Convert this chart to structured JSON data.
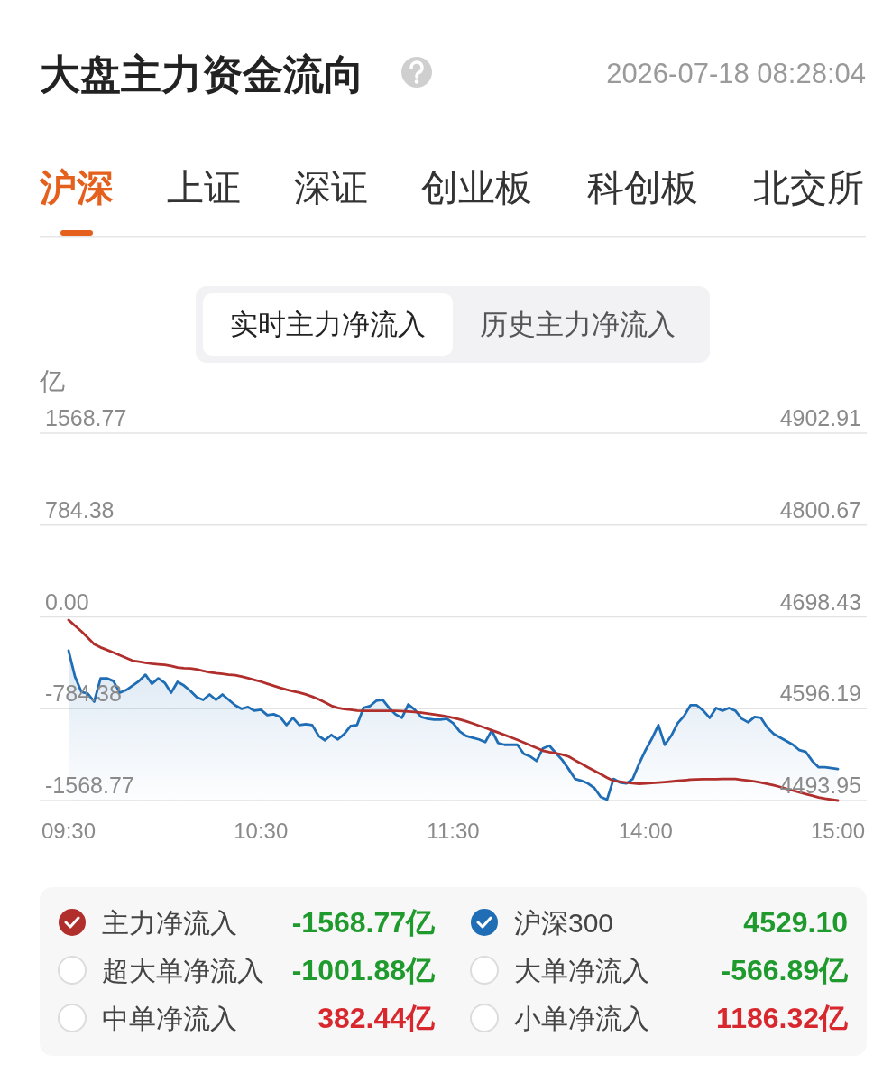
{
  "chart_data": {
    "type": "line",
    "title": "大盘主力资金流向",
    "ylabel": "亿",
    "categories": [
      "09:30",
      null,
      null,
      null,
      null,
      null,
      null,
      null,
      null,
      null,
      null,
      null,
      null,
      null,
      null,
      null,
      null,
      null,
      null,
      null,
      null,
      null,
      null,
      null,
      null,
      null,
      null,
      null,
      null,
      null,
      "10:30",
      null,
      null,
      null,
      null,
      null,
      null,
      null,
      null,
      null,
      null,
      null,
      null,
      null,
      null,
      null,
      null,
      null,
      null,
      null,
      null,
      null,
      null,
      null,
      null,
      null,
      null,
      null,
      null,
      null,
      "11:30",
      null,
      null,
      null,
      null,
      null,
      null,
      null,
      null,
      null,
      null,
      null,
      null,
      null,
      null,
      null,
      null,
      null,
      null,
      null,
      null,
      null,
      null,
      null,
      null,
      null,
      null,
      null,
      null,
      null,
      "14:00",
      null,
      null,
      null,
      null,
      null,
      null,
      null,
      null,
      null,
      null,
      null,
      null,
      null,
      null,
      null,
      null,
      null,
      null,
      null,
      null,
      null,
      null,
      null,
      null,
      null,
      null,
      null,
      null,
      null,
      "15:00"
    ],
    "ylim": [
      -1568.77,
      1568.77
    ],
    "yticks": [
      -1568.77,
      -784.38,
      {
        "value": 0,
        "label": "0.00"
      },
      784.38,
      1568.77
    ],
    "y2lim": [
      4493.95,
      4902.91
    ],
    "y2ticks": [
      4493.95,
      4596.19,
      4698.43,
      4800.67,
      4902.91
    ],
    "grid": "y",
    "legend": "bottom",
    "series": [
      {
        "name": "主力净流入",
        "color": "#b02e2b",
        "values": [
          -26,
          -75,
          -123,
          -178,
          -233,
          -261,
          -282,
          -304,
          -327,
          -351,
          -374,
          -383,
          -392,
          -400,
          -405,
          -410,
          -420,
          -432,
          -438,
          -441,
          -448,
          -461,
          -473,
          -481,
          -487,
          -494,
          -499,
          -510,
          -524,
          -539,
          -553,
          -571,
          -589,
          -606,
          -622,
          -635,
          -647,
          -662,
          -681,
          -703,
          -731,
          -760,
          -778,
          -787,
          -793,
          -800,
          -802,
          -802,
          -802,
          -802,
          -802,
          -802,
          -805,
          -809,
          -813,
          -818,
          -826,
          -834,
          -842,
          -851,
          -862,
          -876,
          -891,
          -910,
          -929,
          -948,
          -968,
          -988,
          -1009,
          -1029,
          -1050,
          -1073,
          -1096,
          -1120,
          -1143,
          -1155,
          -1165,
          -1176,
          -1193,
          -1225,
          -1255,
          -1285,
          -1314,
          -1344,
          -1374,
          -1402,
          -1408,
          -1415,
          -1422,
          -1426,
          -1423,
          -1420,
          -1416,
          -1412,
          -1407,
          -1401,
          -1396,
          -1391,
          -1388,
          -1387,
          -1386,
          -1386,
          -1385,
          -1385,
          -1385,
          -1392,
          -1398,
          -1406,
          -1416,
          -1427,
          -1438,
          -1453,
          -1469,
          -1484,
          -1499,
          -1514,
          -1528,
          -1542,
          -1553,
          -1561,
          -1568.77
        ]
      },
      {
        "name": "沪深300",
        "type": "area",
        "axis": "y2",
        "color": "#1f6db5",
        "values": [
          4661,
          4632,
          4615,
          4613,
          4604,
          4630,
          4630,
          4627,
          4614,
          4617,
          4622,
          4627,
          4634,
          4624,
          4630,
          4625,
          4614,
          4626,
          4622,
          4616,
          4609,
          4606,
          4612,
          4606,
          4612,
          4606,
          4600,
          4596,
          4598,
          4594,
          4595,
          4589,
          4590,
          4587,
          4578,
          4586,
          4578,
          4579,
          4578,
          4566,
          4561,
          4567,
          4562,
          4568,
          4577,
          4578,
          4597,
          4599,
          4605,
          4606,
          4597,
          4590,
          4586,
          4601,
          4595,
          4587,
          4585,
          4584,
          4584,
          4585,
          4580,
          4571,
          4566,
          4564,
          4562,
          4559,
          4572,
          4558,
          4556,
          4556,
          4556,
          4546,
          4543,
          4538,
          4552,
          4555,
          4547,
          4539,
          4529,
          4518,
          4516,
          4513,
          4508,
          4498,
          4495,
          4518,
          4514,
          4513,
          4518,
          4535,
          4550,
          4563,
          4578,
          4556,
          4566,
          4580,
          4588,
          4600,
          4600,
          4594,
          4586,
          4597,
          4594,
          4597,
          4594,
          4585,
          4581,
          4587,
          4586,
          4575,
          4568,
          4564,
          4560,
          4556,
          4550,
          4548,
          4538,
          4531,
          4531,
          4530,
          4529.1
        ]
      }
    ],
    "annotations": [
      "2026-07-18 08:28:04",
      "沪深",
      "上证",
      "深证",
      "创业板",
      "科创板",
      "北交所",
      "实时主力净流入",
      "历史主力净流入",
      "-1568.77亿",
      "4529.10",
      "超大单净流入",
      "-1001.88亿",
      "大单净流入",
      "-566.89亿",
      "中单净流入",
      "382.44亿",
      "小单净流入",
      "1186.32亿"
    ]
  }
}
